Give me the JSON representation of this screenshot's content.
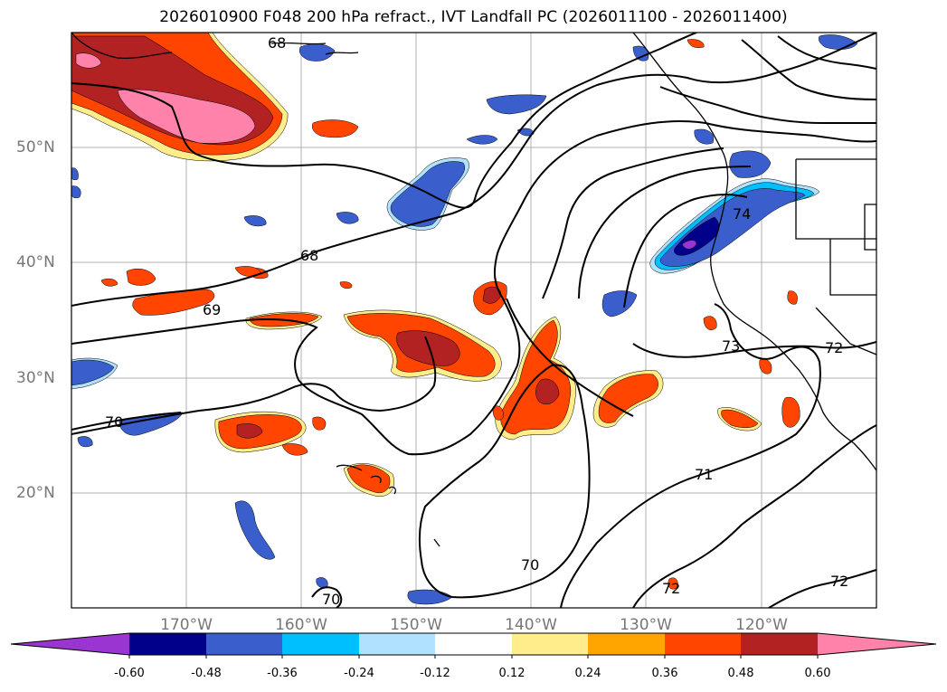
{
  "title": "2026010900 F048 200 hPa refract., IVT Landfall PC (2026011100 - 2026011400)",
  "lat_labels": [
    "50°N",
    "40°N",
    "30°N",
    "20°N"
  ],
  "lon_labels": [
    "170°W",
    "160°W",
    "150°W",
    "140°W",
    "130°W",
    "120°W"
  ],
  "contour_labels": [
    "68",
    "68",
    "69",
    "70",
    "70",
    "70",
    "71",
    "72",
    "72",
    "72",
    "73",
    "74"
  ],
  "colorbar": {
    "ticks": [
      "-0.60",
      "-0.48",
      "-0.36",
      "-0.24",
      "-0.12",
      "0.12",
      "0.24",
      "0.36",
      "0.48",
      "0.60"
    ],
    "colors": [
      "#9a35d1",
      "#00008b",
      "#3a5fcd",
      "#00bfff",
      "#b0e2ff",
      "#ffffff",
      "#ffec8b",
      "#ffa500",
      "#ff4500",
      "#b22222",
      "#ff82ab"
    ]
  },
  "fill_colors": {
    "purple": "#9a35d1",
    "navy": "#00008b",
    "blue": "#3a5fcd",
    "cyan": "#00bfff",
    "lightblue": "#b0e2ff",
    "yellow": "#ffec8b",
    "orange": "#ffa500",
    "redorange": "#ff4500",
    "firebrick": "#b22222",
    "pink": "#ff82ab"
  }
}
